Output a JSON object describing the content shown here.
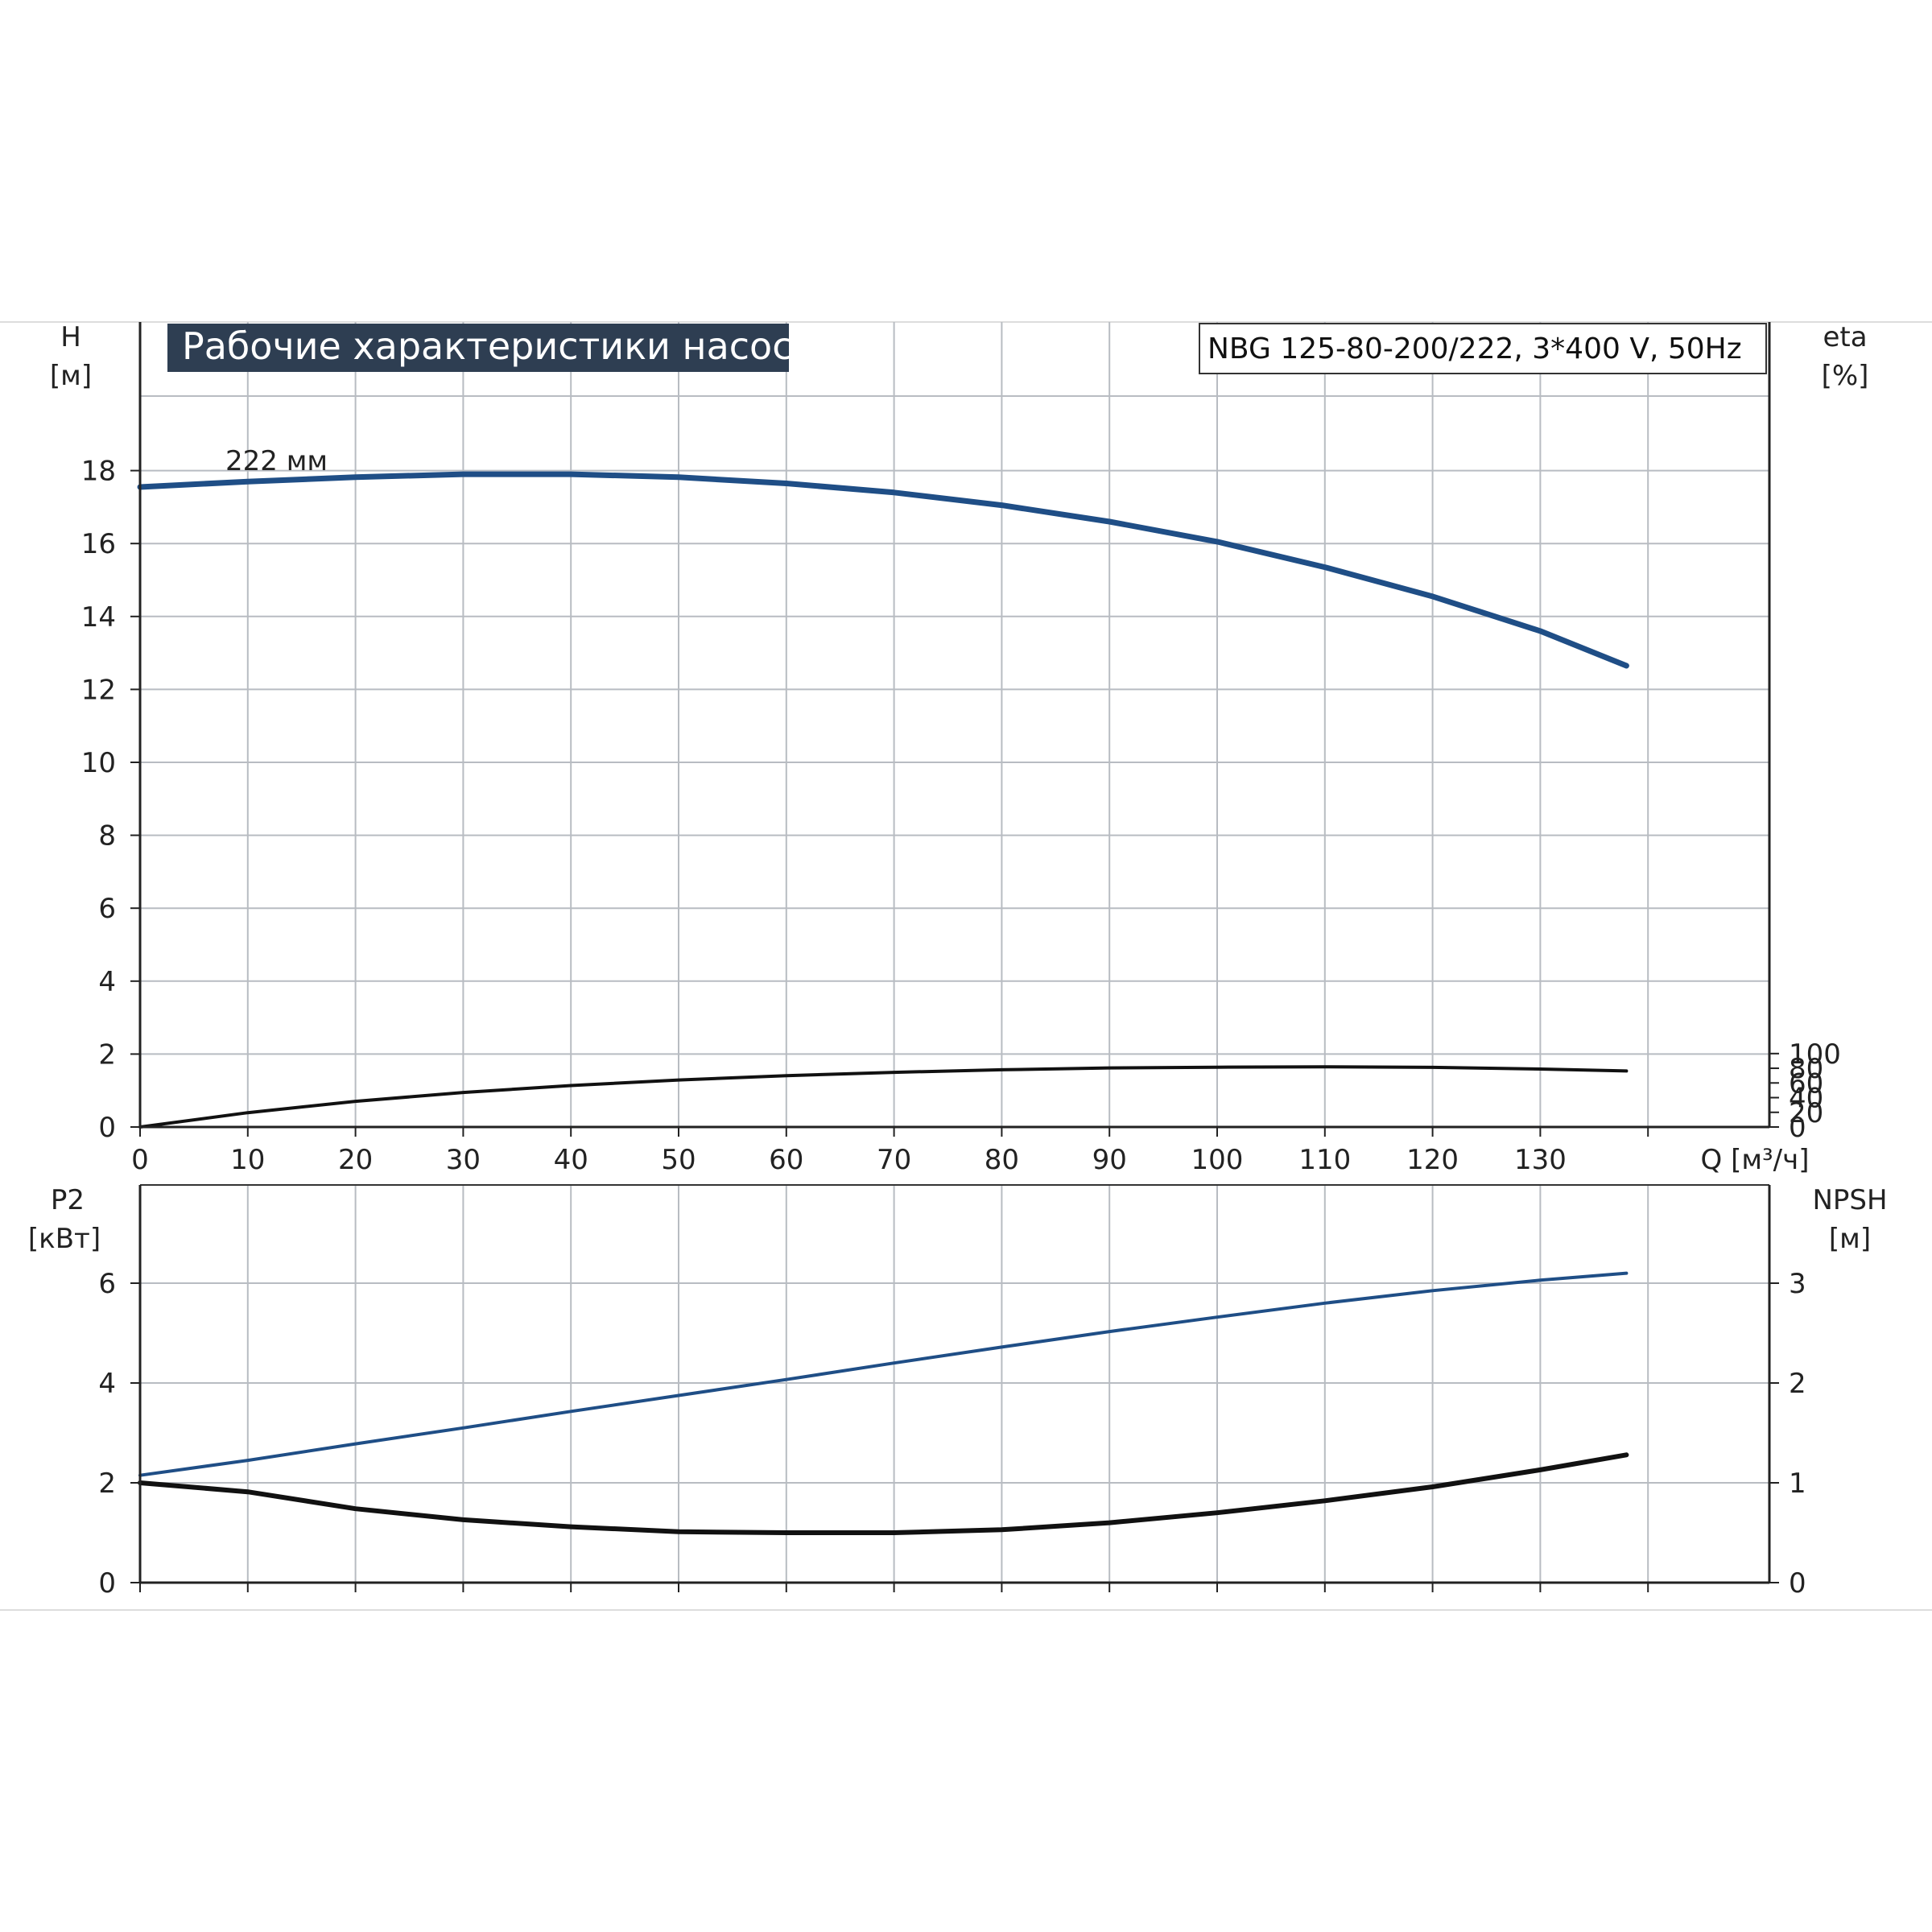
{
  "chart_title": "Рабочие характеристики насоса",
  "pump_label": "NBG 125-80-200/222, 3*400 V, 50Hz",
  "colors": {
    "title_bg": "#2e3e52",
    "grid": "#b8bcc2",
    "blue_curve": "#1f4e86",
    "black_curve": "#111111"
  },
  "chart_data": [
    {
      "type": "line",
      "panel": "top",
      "x_axis": {
        "label": "Q [м³/ч]",
        "range": [
          0,
          150
        ],
        "ticks": [
          0,
          10,
          20,
          30,
          40,
          50,
          60,
          70,
          80,
          90,
          100,
          110,
          120,
          130
        ]
      },
      "y_left": {
        "label_line1": "H",
        "label_line2": "[м]",
        "range": [
          0,
          18
        ],
        "ticks": [
          0,
          2,
          4,
          6,
          8,
          10,
          12,
          14,
          16,
          18
        ]
      },
      "y_right": {
        "label_line1": "eta",
        "label_line2": "[%]",
        "range": [
          0,
          100
        ],
        "ticks": [
          0,
          20,
          40,
          60,
          80,
          100
        ]
      },
      "grid": true,
      "annotations": [
        {
          "text": "222 мм"
        }
      ],
      "series": [
        {
          "axis": "left",
          "color": "blue",
          "x": [
            0,
            10,
            20,
            30,
            40,
            50,
            60,
            70,
            80,
            90,
            100,
            110,
            120,
            130,
            138
          ],
          "y": [
            17.55,
            17.7,
            17.82,
            17.9,
            17.9,
            17.82,
            17.65,
            17.4,
            17.05,
            16.6,
            16.05,
            15.35,
            14.55,
            13.6,
            12.65
          ]
        },
        {
          "axis": "right",
          "color": "black",
          "x": [
            0,
            10,
            20,
            30,
            40,
            50,
            60,
            70,
            80,
            90,
            100,
            110,
            120,
            130,
            138
          ],
          "y": [
            0,
            19.5,
            35,
            47,
            56.5,
            64,
            70,
            74.5,
            78,
            80.5,
            81.5,
            82,
            81.3,
            79,
            76.3
          ]
        }
      ]
    },
    {
      "type": "line",
      "panel": "bottom",
      "x_axis": {
        "range": [
          0,
          150
        ],
        "ticks": [
          0,
          10,
          20,
          30,
          40,
          50,
          60,
          70,
          80,
          90,
          100,
          110,
          120,
          130
        ]
      },
      "y_left": {
        "label_line1": "P2",
        "label_line2": "[кВт]",
        "range": [
          0,
          8
        ],
        "ticks": [
          0,
          2,
          4,
          6
        ]
      },
      "y_right": {
        "label_line1": "NPSH",
        "label_line2": "[м]",
        "range": [
          0,
          4
        ],
        "ticks": [
          0,
          1,
          2,
          3
        ]
      },
      "grid": true,
      "series": [
        {
          "axis": "left",
          "color": "blue",
          "x": [
            0,
            10,
            20,
            30,
            40,
            50,
            60,
            70,
            80,
            90,
            100,
            110,
            120,
            130,
            138
          ],
          "y": [
            2.15,
            2.45,
            2.78,
            3.1,
            3.43,
            3.75,
            4.07,
            4.4,
            4.72,
            5.03,
            5.32,
            5.6,
            5.85,
            6.06,
            6.2
          ]
        },
        {
          "axis": "right",
          "color": "black",
          "x": [
            0,
            10,
            20,
            30,
            40,
            50,
            60,
            70,
            80,
            90,
            100,
            110,
            120,
            130,
            138
          ],
          "y": [
            1.0,
            0.91,
            0.74,
            0.63,
            0.56,
            0.51,
            0.5,
            0.5,
            0.53,
            0.6,
            0.7,
            0.82,
            0.96,
            1.13,
            1.28
          ]
        }
      ]
    }
  ]
}
